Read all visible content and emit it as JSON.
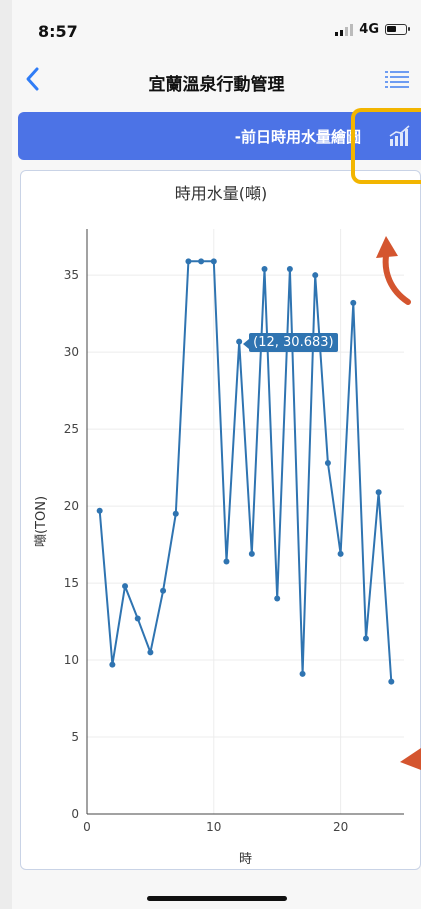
{
  "status_bar": {
    "time": "8:57",
    "network": "4G"
  },
  "nav": {
    "title": "宜蘭溫泉行動管理",
    "back_icon": "chevron-left-icon",
    "menu_icon": "list-icon"
  },
  "banner": {
    "text": "-前日時用水量繪圖",
    "icon": "bar-chart-icon"
  },
  "colors": {
    "accent": "#4c73e6",
    "line": "#2f74b1",
    "highlight": "#f2b500",
    "arrow": "#d4552f"
  },
  "chart_data": {
    "type": "line",
    "title": "時用水量(噸)",
    "xlabel": "時",
    "ylabel": "噸(TON)",
    "xlim": [
      0,
      25
    ],
    "ylim": [
      0,
      38
    ],
    "xticks": [
      0,
      10,
      20
    ],
    "yticks": [
      0,
      5,
      10,
      15,
      20,
      25,
      30,
      35
    ],
    "grid": true,
    "x": [
      1,
      2,
      3,
      4,
      5,
      6,
      7,
      8,
      9,
      10,
      11,
      12,
      13,
      14,
      15,
      16,
      17,
      18,
      19,
      20,
      21,
      22,
      23,
      24
    ],
    "y": [
      19.7,
      9.7,
      14.8,
      12.7,
      10.5,
      14.5,
      19.5,
      35.9,
      35.9,
      35.9,
      16.4,
      30.683,
      16.9,
      35.4,
      14.0,
      35.4,
      9.1,
      35.0,
      22.8,
      16.9,
      33.2,
      11.4,
      20.9,
      8.6
    ],
    "tooltip": {
      "x": 12,
      "text": "(12, 30.683)"
    }
  }
}
